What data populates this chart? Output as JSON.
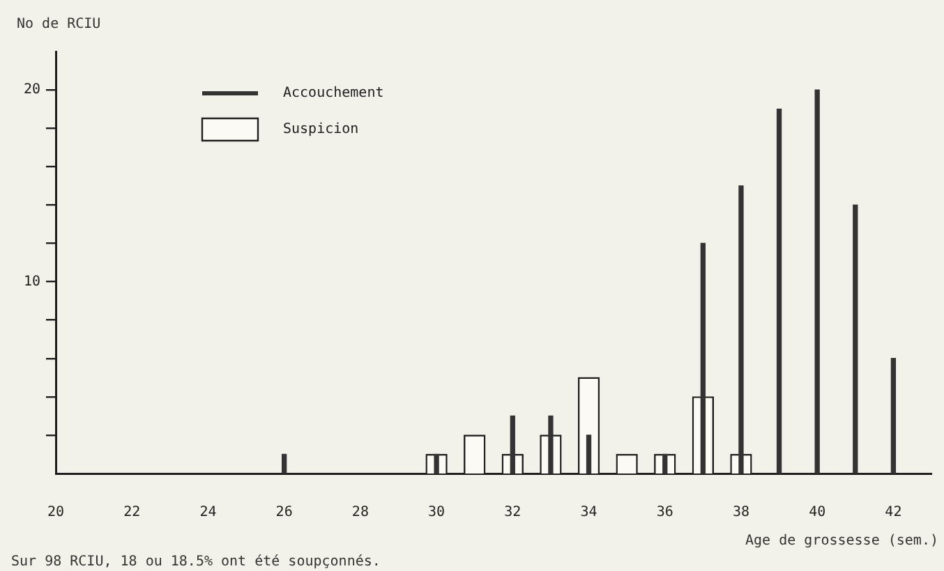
{
  "chart_data": {
    "type": "bar",
    "ylabel": "No de RCIU",
    "xlabel": "Age de grossesse (sem.)",
    "annotations": [
      "Sur 98 RCIU, 18 ou 18.5% ont été soupçonnés."
    ],
    "xlim": [
      20,
      43
    ],
    "xticks": [
      20,
      22,
      24,
      26,
      28,
      30,
      32,
      34,
      36,
      38,
      40,
      42
    ],
    "ylim": [
      0,
      22
    ],
    "yticks": [
      {
        "value": 2,
        "label": null
      },
      {
        "value": 4,
        "label": null
      },
      {
        "value": 6,
        "label": null
      },
      {
        "value": 8,
        "label": null
      },
      10,
      {
        "value": 12,
        "label": null
      },
      {
        "value": 14,
        "label": null
      },
      {
        "value": 16,
        "label": null
      },
      {
        "value": 18,
        "label": null
      },
      20
    ],
    "legend": "top left",
    "series": [
      {
        "name": "Accouchement",
        "color": "#333333",
        "x": [
          26,
          30,
          32,
          33,
          34,
          36,
          37,
          38,
          39,
          40,
          41,
          42
        ],
        "values": [
          1,
          1,
          3,
          3,
          2,
          1,
          12,
          15,
          19,
          20,
          14,
          6
        ]
      },
      {
        "name": "Suspicion",
        "color": "#fbfaf4",
        "x": [
          30,
          31,
          32,
          33,
          34,
          35,
          36,
          37,
          38
        ],
        "values": [
          1,
          2,
          1,
          2,
          5,
          1,
          1,
          4,
          1
        ]
      }
    ]
  }
}
